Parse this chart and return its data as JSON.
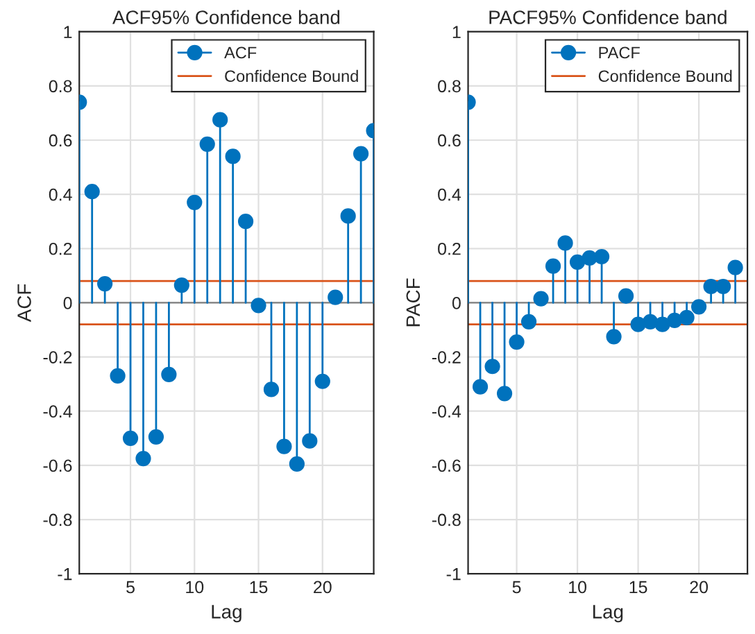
{
  "chart_data": [
    {
      "type": "lollipop",
      "title": "ACF95% Confidence band",
      "xlabel": "Lag",
      "ylabel": "ACF",
      "x": [
        1,
        2,
        3,
        4,
        5,
        6,
        7,
        8,
        9,
        10,
        11,
        12,
        13,
        14,
        15,
        16,
        17,
        18,
        19,
        20,
        21,
        22,
        23,
        24
      ],
      "series": [
        {
          "name": "ACF",
          "color": "#0072bd",
          "values": [
            0.74,
            0.41,
            0.07,
            -0.27,
            -0.5,
            -0.575,
            -0.495,
            -0.265,
            0.065,
            0.37,
            0.585,
            0.675,
            0.54,
            0.3,
            -0.01,
            -0.32,
            -0.53,
            -0.595,
            -0.51,
            -0.29,
            0.02,
            0.32,
            0.55,
            0.635
          ]
        }
      ],
      "ref_lines": [
        {
          "axis": "y",
          "value": 0.08,
          "label": "Confidence Bound",
          "color": "#d95319"
        },
        {
          "axis": "y",
          "value": -0.08,
          "color": "#d95319"
        }
      ],
      "xlim": [
        1,
        24
      ],
      "xticks": [
        5,
        10,
        15,
        20
      ],
      "ylim": [
        -1,
        1
      ],
      "yticks": [
        -1,
        -0.8,
        -0.6,
        -0.4,
        -0.2,
        0,
        0.2,
        0.4,
        0.6,
        0.8,
        1
      ],
      "grid": true,
      "legend": "top right",
      "marker": "circle"
    },
    {
      "type": "lollipop",
      "title": "PACF95% Confidence band",
      "xlabel": "Lag",
      "ylabel": "PACF",
      "x": [
        1,
        2,
        3,
        4,
        5,
        6,
        7,
        8,
        9,
        10,
        11,
        12,
        13,
        14,
        15,
        16,
        17,
        18,
        19,
        20,
        21,
        22,
        23
      ],
      "series": [
        {
          "name": "PACF",
          "color": "#0072bd",
          "values": [
            0.74,
            -0.31,
            -0.235,
            -0.335,
            -0.145,
            -0.07,
            0.015,
            0.135,
            0.22,
            0.15,
            0.165,
            0.17,
            -0.125,
            0.025,
            -0.08,
            -0.07,
            -0.08,
            -0.065,
            -0.055,
            -0.015,
            0.06,
            0.06,
            0.13
          ]
        }
      ],
      "ref_lines": [
        {
          "axis": "y",
          "value": 0.08,
          "label": "Confidence Bound",
          "color": "#d95319"
        },
        {
          "axis": "y",
          "value": -0.08,
          "color": "#d95319"
        }
      ],
      "xlim": [
        1,
        24
      ],
      "xticks": [
        5,
        10,
        15,
        20
      ],
      "ylim": [
        -1,
        1
      ],
      "yticks": [
        -1,
        -0.8,
        -0.6,
        -0.4,
        -0.2,
        0,
        0.2,
        0.4,
        0.6,
        0.8,
        1
      ],
      "grid": true,
      "legend": "top right",
      "marker": "circle"
    }
  ]
}
